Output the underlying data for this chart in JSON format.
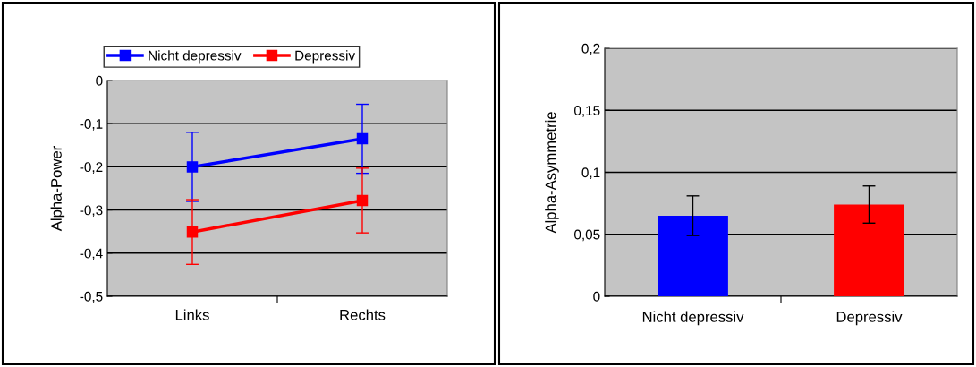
{
  "chart_data": [
    {
      "type": "line",
      "categories": [
        "Links",
        "Rechts"
      ],
      "ylabel": "Alpha-Power",
      "ylim": [
        -0.5,
        0
      ],
      "yticks": [
        {
          "value": -0.5,
          "label": "-0,5"
        },
        {
          "value": -0.4,
          "label": "-0,4"
        },
        {
          "value": -0.3,
          "label": "-0,3"
        },
        {
          "value": -0.2,
          "label": "-0,2"
        },
        {
          "value": -0.1,
          "label": "-0,1"
        },
        0
      ],
      "grid": "y",
      "legend": "top",
      "marker": "square",
      "line_style": "solid",
      "series": [
        {
          "name": "Nicht depressiv",
          "color": "#0000ff",
          "values": [
            -0.2,
            -0.135
          ],
          "errors": [
            0.08,
            0.08
          ]
        },
        {
          "name": "Depressiv",
          "color": "#ff0000",
          "values": [
            -0.351,
            -0.278
          ],
          "errors": [
            0.075,
            0.075
          ]
        }
      ]
    },
    {
      "type": "bar",
      "categories": [
        "Nicht depressiv",
        "Depressiv"
      ],
      "ylabel": "Alpha-Asymmetrie",
      "ylim": [
        0,
        0.2
      ],
      "yticks": [
        0,
        {
          "value": 0.05,
          "label": "0,05"
        },
        {
          "value": 0.1,
          "label": "0,1"
        },
        {
          "value": 0.15,
          "label": "0,15"
        },
        {
          "value": 0.2,
          "label": "0,2"
        }
      ],
      "grid": "y",
      "values": [
        0.065,
        0.074
      ],
      "colors": [
        "#0000ff",
        "#ff0000"
      ],
      "errors": [
        0.016,
        0.015
      ]
    }
  ]
}
